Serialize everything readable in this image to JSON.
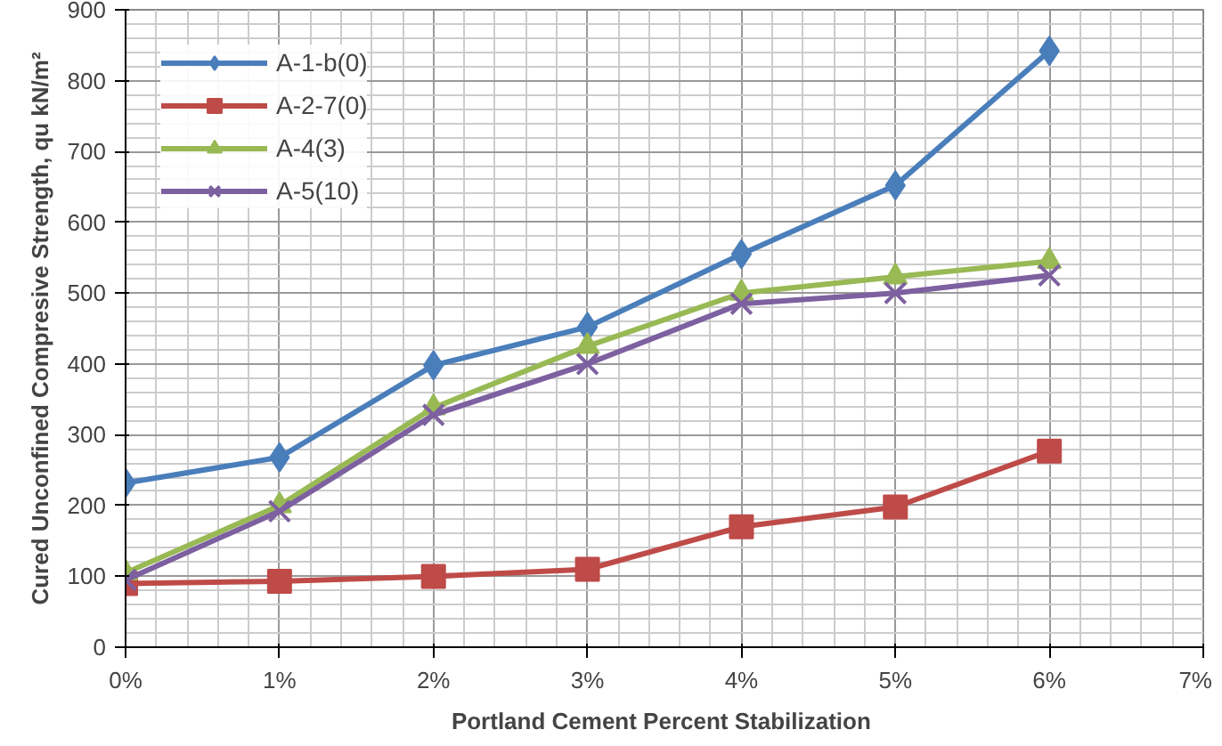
{
  "chart_data": {
    "type": "line",
    "xlabel": "Portland  Cement Percent Stabilization",
    "ylabel": "Cured Unconfined Compresive Strength, qu kN/m²",
    "x": [
      0,
      1,
      2,
      3,
      4,
      5,
      6
    ],
    "xlim": [
      0,
      7
    ],
    "xticks": [
      {
        "value": 0,
        "label": "0%"
      },
      {
        "value": 1,
        "label": "1%"
      },
      {
        "value": 2,
        "label": "2%"
      },
      {
        "value": 3,
        "label": "3%"
      },
      {
        "value": 4,
        "label": "4%"
      },
      {
        "value": 5,
        "label": "5%"
      },
      {
        "value": 6,
        "label": "6%"
      },
      {
        "value": 7,
        "label": "7%"
      }
    ],
    "ylim": [
      0,
      900
    ],
    "yticks": [
      0,
      100,
      200,
      300,
      400,
      500,
      600,
      700,
      800,
      900
    ],
    "grid": true,
    "legend": "top left",
    "line_style": "solid",
    "series": [
      {
        "name": "A-1-b(0)",
        "color": "#4a7ebb",
        "marker": "diamond",
        "values": [
          232,
          268,
          398,
          452,
          555,
          652,
          842
        ]
      },
      {
        "name": "A-2-7(0)",
        "color": "#be4b48",
        "marker": "square",
        "values": [
          90,
          93,
          100,
          110,
          170,
          198,
          277
        ]
      },
      {
        "name": "A-4(3)",
        "color": "#98b954",
        "marker": "triangle",
        "values": [
          105,
          200,
          338,
          425,
          500,
          523,
          545
        ]
      },
      {
        "name": "A-5(10)",
        "color": "#7d60a0",
        "marker": "x",
        "values": [
          95,
          192,
          328,
          400,
          485,
          500,
          525
        ]
      }
    ]
  }
}
